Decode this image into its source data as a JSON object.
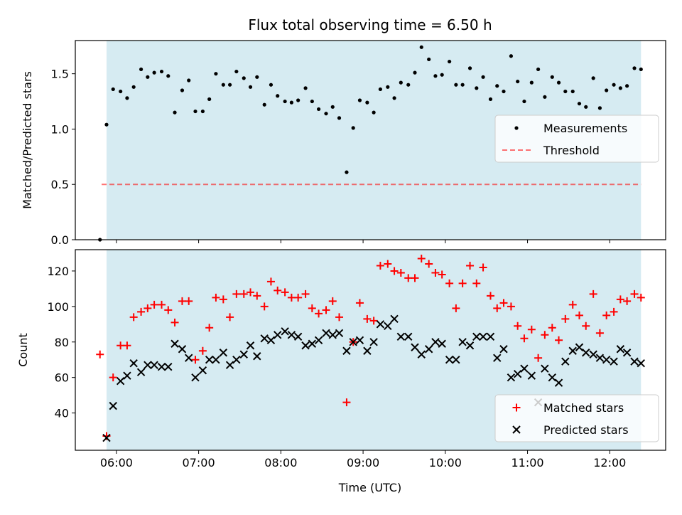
{
  "title": "Flux total observing time = 6.50 h",
  "colors": {
    "observing_window": "#add8e6",
    "measurements": "#000000",
    "threshold": "#ff0000",
    "matched": "#ff0000",
    "predicted": "#000000"
  },
  "chart_data": [
    {
      "type": "scatter",
      "ylabel": "Matched/Predicted stars",
      "xlabel": "",
      "ylim": [
        0,
        1.8
      ],
      "yticks": [
        "0.0",
        "0.5",
        "1.0",
        "1.5"
      ],
      "xlim_hours": [
        5.5,
        12.68
      ],
      "x_ticks": [
        "06:00",
        "07:00",
        "08:00",
        "09:00",
        "10:00",
        "11:00",
        "12:00"
      ],
      "observing_window_hours": [
        5.88,
        12.38
      ],
      "threshold": 0.5,
      "legend": {
        "placement": "center-right",
        "entries": [
          "Measurements",
          "Threshold"
        ]
      },
      "series": [
        {
          "name": "Measurements",
          "marker": "dot",
          "x": [
            5.8,
            5.88,
            5.96,
            6.05,
            6.13,
            6.21,
            6.3,
            6.38,
            6.46,
            6.55,
            6.63,
            6.71,
            6.8,
            6.88,
            6.96,
            7.05,
            7.13,
            7.21,
            7.3,
            7.38,
            7.46,
            7.55,
            7.63,
            7.71,
            7.8,
            7.88,
            7.96,
            8.05,
            8.13,
            8.21,
            8.3,
            8.38,
            8.46,
            8.55,
            8.63,
            8.71,
            8.8,
            8.88,
            8.96,
            9.05,
            9.13,
            9.21,
            9.3,
            9.38,
            9.46,
            9.55,
            9.63,
            9.71,
            9.8,
            9.88,
            9.96,
            10.05,
            10.13,
            10.21,
            10.3,
            10.38,
            10.46,
            10.55,
            10.63,
            10.71,
            10.8,
            10.88,
            10.96,
            11.05,
            11.13,
            11.21,
            11.3,
            11.38,
            11.46,
            11.55,
            11.63,
            11.71,
            11.8,
            11.88,
            11.96,
            12.05,
            12.13,
            12.21,
            12.3,
            12.38
          ],
          "y": [
            0.0,
            1.04,
            1.36,
            1.34,
            1.28,
            1.38,
            1.54,
            1.47,
            1.51,
            1.52,
            1.48,
            1.15,
            1.35,
            1.44,
            1.16,
            1.16,
            1.27,
            1.5,
            1.4,
            1.4,
            1.52,
            1.46,
            1.38,
            1.47,
            1.22,
            1.4,
            1.3,
            1.25,
            1.24,
            1.26,
            1.37,
            1.25,
            1.18,
            1.14,
            1.2,
            1.1,
            0.61,
            1.01,
            1.26,
            1.24,
            1.15,
            1.36,
            1.38,
            1.28,
            1.42,
            1.4,
            1.51,
            1.74,
            1.63,
            1.48,
            1.49,
            1.61,
            1.4,
            1.4,
            1.55,
            1.37,
            1.47,
            1.27,
            1.39,
            1.34,
            1.66,
            1.43,
            1.25,
            1.42,
            1.54,
            1.29,
            1.47,
            1.42,
            1.34,
            1.34,
            1.23,
            1.2,
            1.46,
            1.19,
            1.35,
            1.4,
            1.37,
            1.39,
            1.55,
            1.54
          ]
        }
      ]
    },
    {
      "type": "scatter",
      "ylabel": "Count",
      "xlabel": "Time (UTC)",
      "ylim": [
        19,
        132
      ],
      "yticks": [
        "40",
        "60",
        "80",
        "100",
        "120"
      ],
      "xlim_hours": [
        5.5,
        12.68
      ],
      "x_ticks": [
        "06:00",
        "07:00",
        "08:00",
        "09:00",
        "10:00",
        "11:00",
        "12:00"
      ],
      "observing_window_hours": [
        5.88,
        12.38
      ],
      "legend": {
        "placement": "bottom-right",
        "entries": [
          "Matched stars",
          "Predicted stars"
        ]
      },
      "series": [
        {
          "name": "Matched stars",
          "marker": "plus",
          "x": [
            5.8,
            5.88,
            5.96,
            6.05,
            6.13,
            6.21,
            6.3,
            6.38,
            6.46,
            6.55,
            6.63,
            6.71,
            6.8,
            6.88,
            6.96,
            7.05,
            7.13,
            7.21,
            7.3,
            7.38,
            7.46,
            7.55,
            7.63,
            7.71,
            7.8,
            7.88,
            7.96,
            8.05,
            8.13,
            8.21,
            8.3,
            8.38,
            8.46,
            8.55,
            8.63,
            8.71,
            8.8,
            8.88,
            8.96,
            9.05,
            9.13,
            9.21,
            9.3,
            9.38,
            9.46,
            9.55,
            9.63,
            9.71,
            9.8,
            9.88,
            9.96,
            10.05,
            10.13,
            10.21,
            10.3,
            10.38,
            10.46,
            10.55,
            10.63,
            10.71,
            10.8,
            10.88,
            10.96,
            11.05,
            11.13,
            11.21,
            11.3,
            11.38,
            11.46,
            11.55,
            11.63,
            11.71,
            11.8,
            11.88,
            11.96,
            12.05,
            12.13,
            12.21,
            12.3,
            12.38
          ],
          "y": [
            73,
            27,
            60,
            78,
            78,
            94,
            97,
            99,
            101,
            101,
            98,
            91,
            103,
            103,
            70,
            75,
            88,
            105,
            104,
            94,
            107,
            107,
            108,
            106,
            100,
            114,
            109,
            108,
            105,
            105,
            107,
            99,
            96,
            98,
            103,
            94,
            46,
            80,
            102,
            93,
            92,
            123,
            124,
            120,
            119,
            116,
            116,
            127,
            124,
            119,
            118,
            113,
            99,
            113,
            123,
            113,
            122,
            106,
            99,
            102,
            100,
            89,
            82,
            87,
            71,
            84,
            88,
            81,
            93,
            101,
            95,
            89,
            107,
            85,
            95,
            97,
            104,
            103,
            107,
            105
          ]
        },
        {
          "name": "Predicted stars",
          "marker": "x",
          "x": [
            5.88,
            5.96,
            6.05,
            6.13,
            6.21,
            6.3,
            6.38,
            6.46,
            6.55,
            6.63,
            6.71,
            6.8,
            6.88,
            6.96,
            7.05,
            7.13,
            7.21,
            7.3,
            7.38,
            7.46,
            7.55,
            7.63,
            7.71,
            7.8,
            7.88,
            7.96,
            8.05,
            8.13,
            8.21,
            8.3,
            8.38,
            8.46,
            8.55,
            8.63,
            8.71,
            8.8,
            8.88,
            8.96,
            9.05,
            9.13,
            9.21,
            9.3,
            9.38,
            9.46,
            9.55,
            9.63,
            9.71,
            9.8,
            9.88,
            9.96,
            10.05,
            10.13,
            10.21,
            10.3,
            10.38,
            10.46,
            10.55,
            10.63,
            10.71,
            10.8,
            10.88,
            10.96,
            11.05,
            11.13,
            11.21,
            11.3,
            11.38,
            11.46,
            11.55,
            11.63,
            11.71,
            11.8,
            11.88,
            11.96,
            12.05,
            12.13,
            12.21,
            12.3,
            12.38
          ],
          "y": [
            26,
            44,
            58,
            61,
            68,
            63,
            67,
            67,
            66,
            66,
            79,
            76,
            71,
            60,
            64,
            70,
            70,
            74,
            67,
            70,
            73,
            78,
            72,
            82,
            81,
            84,
            86,
            84,
            83,
            78,
            79,
            81,
            85,
            84,
            85,
            75,
            80,
            81,
            75,
            80,
            90,
            89,
            93,
            83,
            83,
            77,
            73,
            76,
            80,
            79,
            70,
            70,
            80,
            78,
            83,
            83,
            83,
            71,
            76,
            60,
            62,
            65,
            61,
            46,
            65,
            60,
            57,
            69,
            75,
            77,
            74,
            73,
            71,
            70,
            69,
            76,
            74,
            69,
            68
          ]
        }
      ]
    }
  ]
}
